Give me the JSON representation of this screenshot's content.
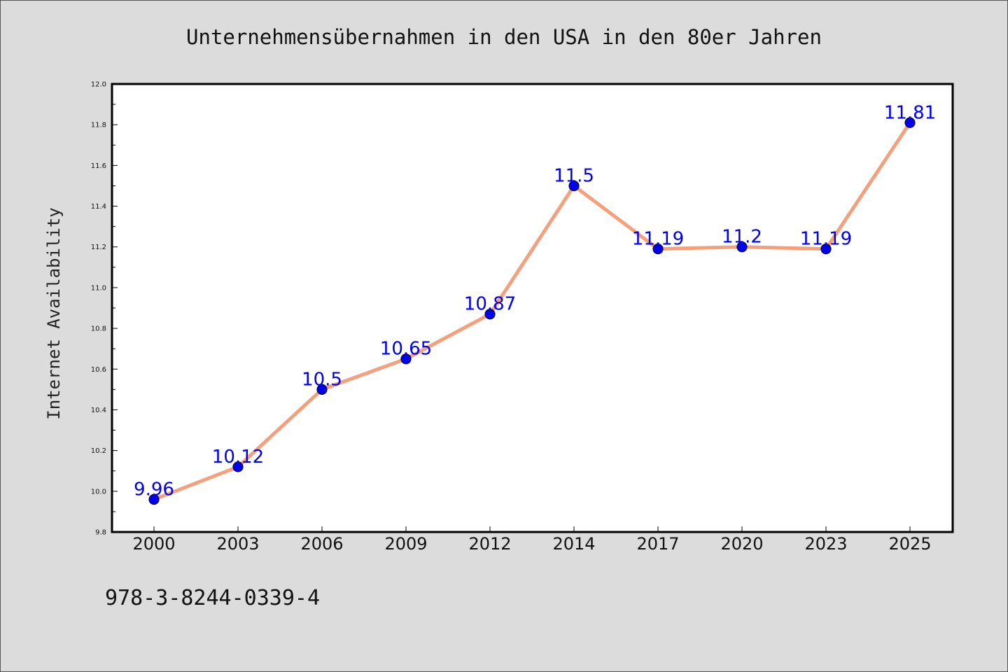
{
  "chart_data": {
    "type": "line",
    "title": "Unternehmensübernahmen in den USA in den 80er Jahren",
    "xlabel": "",
    "ylabel": "Internet Availability",
    "categories": [
      "2000",
      "2003",
      "2006",
      "2009",
      "2012",
      "2014",
      "2017",
      "2020",
      "2023",
      "2025"
    ],
    "series": [
      {
        "values": [
          9.96,
          10.12,
          10.5,
          10.65,
          10.87,
          11.5,
          11.19,
          11.2,
          11.19,
          11.81
        ],
        "labels": [
          "9.96",
          "10.12",
          "10.5",
          "10.65",
          "10.87",
          "11.5",
          "11.19",
          "11.2",
          "11.19",
          "11.81"
        ]
      }
    ],
    "ylim": [
      9.8,
      12.0
    ],
    "yticks": [
      "9.8",
      "10.0",
      "10.2",
      "10.4",
      "10.6",
      "10.8",
      "11.0",
      "11.2",
      "11.4",
      "11.6",
      "11.8",
      "12.0"
    ],
    "grid": false,
    "legend": "none",
    "colors": {
      "line": "#f4a07c",
      "marker": "#0000ee",
      "marker_edge": "#000033",
      "data_label": "#0000ee",
      "background": "#dcdcdc",
      "plot_background": "#ffffff"
    }
  },
  "footnote": "978-3-8244-0339-4"
}
